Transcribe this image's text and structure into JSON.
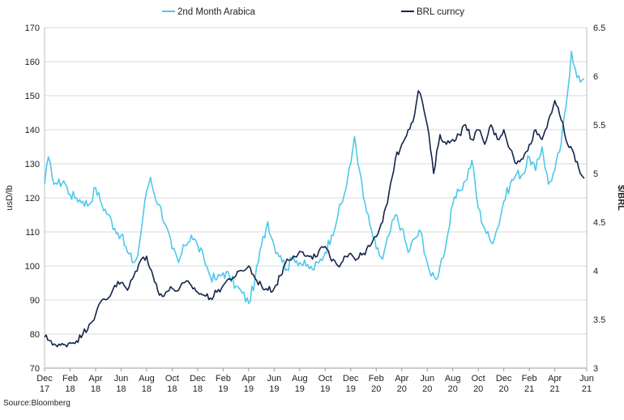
{
  "chart_data": {
    "type": "line",
    "title": "",
    "source": "Source:Bloomberg",
    "xlabel": "",
    "ylabel_left": "usD/lb",
    "ylabel_right": "$/BRL",
    "ylim_left": [
      70,
      170
    ],
    "ylim_right": [
      3.0,
      6.5
    ],
    "yticks_left": [
      "70",
      "80",
      "90",
      "100",
      "110",
      "120",
      "130",
      "140",
      "150",
      "160",
      "170"
    ],
    "yticks_right": [
      "3",
      "3.5",
      "4",
      "4.5",
      "5",
      "5.5",
      "6",
      "6.5"
    ],
    "x_ticks": [
      {
        "month": "Dec",
        "year": "17"
      },
      {
        "month": "Feb",
        "year": "18"
      },
      {
        "month": "Apr",
        "year": "18"
      },
      {
        "month": "Jun",
        "year": "18"
      },
      {
        "month": "Aug",
        "year": "18"
      },
      {
        "month": "Oct",
        "year": "18"
      },
      {
        "month": "Dec",
        "year": "18"
      },
      {
        "month": "Feb",
        "year": "19"
      },
      {
        "month": "Apr",
        "year": "19"
      },
      {
        "month": "Jun",
        "year": "19"
      },
      {
        "month": "Aug",
        "year": "19"
      },
      {
        "month": "Oct",
        "year": "19"
      },
      {
        "month": "Dec",
        "year": "19"
      },
      {
        "month": "Feb",
        "year": "20"
      },
      {
        "month": "Apr",
        "year": "20"
      },
      {
        "month": "Jun",
        "year": "20"
      },
      {
        "month": "Aug",
        "year": "20"
      },
      {
        "month": "Oct",
        "year": "20"
      },
      {
        "month": "Dec",
        "year": "20"
      },
      {
        "month": "Feb",
        "year": "21"
      },
      {
        "month": "Apr",
        "year": "21"
      },
      {
        "month": "Jun",
        "year": "21"
      }
    ],
    "x_range_months": [
      0,
      42.5
    ],
    "legend_position": "top-center",
    "series": [
      {
        "name": "2nd Month Arabica",
        "axis": "left",
        "color": "#4FC8EA",
        "points": [
          [
            0,
            124
          ],
          [
            0.3,
            132
          ],
          [
            0.6,
            126
          ],
          [
            1,
            124
          ],
          [
            1.5,
            125
          ],
          [
            2,
            121
          ],
          [
            2.5,
            120
          ],
          [
            3,
            119
          ],
          [
            3.5,
            118
          ],
          [
            4,
            123
          ],
          [
            4.5,
            118
          ],
          [
            5,
            115
          ],
          [
            5.5,
            111
          ],
          [
            6,
            109
          ],
          [
            6.5,
            104
          ],
          [
            7,
            101
          ],
          [
            7.3,
            103
          ],
          [
            7.7,
            114
          ],
          [
            8,
            122
          ],
          [
            8.3,
            126
          ],
          [
            8.6,
            121
          ],
          [
            9,
            118
          ],
          [
            9.5,
            112
          ],
          [
            10,
            105
          ],
          [
            10.5,
            101
          ],
          [
            11,
            106
          ],
          [
            11.5,
            109
          ],
          [
            12,
            106
          ],
          [
            12.5,
            102
          ],
          [
            13,
            97
          ],
          [
            13.5,
            96
          ],
          [
            14,
            98
          ],
          [
            14.5,
            97
          ],
          [
            15,
            94
          ],
          [
            15.5,
            92
          ],
          [
            16,
            89
          ],
          [
            16.5,
            96
          ],
          [
            17,
            106
          ],
          [
            17.5,
            113
          ],
          [
            18,
            106
          ],
          [
            18.5,
            103
          ],
          [
            19,
            99
          ],
          [
            19.5,
            103
          ],
          [
            20,
            101
          ],
          [
            20.5,
            100
          ],
          [
            21,
            99
          ],
          [
            21.5,
            101
          ],
          [
            22,
            104
          ],
          [
            22.5,
            109
          ],
          [
            23,
            115
          ],
          [
            23.5,
            121
          ],
          [
            24,
            130
          ],
          [
            24.3,
            138
          ],
          [
            24.7,
            128
          ],
          [
            25,
            120
          ],
          [
            25.5,
            112
          ],
          [
            26,
            105
          ],
          [
            26.5,
            102
          ],
          [
            27,
            109
          ],
          [
            27.5,
            115
          ],
          [
            28,
            111
          ],
          [
            28.5,
            104
          ],
          [
            29,
            108
          ],
          [
            29.5,
            110
          ],
          [
            30,
            101
          ],
          [
            30.3,
            97
          ],
          [
            30.7,
            96
          ],
          [
            31,
            100
          ],
          [
            31.5,
            107
          ],
          [
            32,
            118
          ],
          [
            32.5,
            122
          ],
          [
            33,
            125
          ],
          [
            33.5,
            131
          ],
          [
            34,
            117
          ],
          [
            34.5,
            111
          ],
          [
            35,
            107
          ],
          [
            35.5,
            111
          ],
          [
            36,
            119
          ],
          [
            36.5,
            124
          ],
          [
            37,
            127
          ],
          [
            37.5,
            127
          ],
          [
            38,
            132
          ],
          [
            38.5,
            128
          ],
          [
            39,
            135
          ],
          [
            39.5,
            124
          ],
          [
            40,
            128
          ],
          [
            40.5,
            136
          ],
          [
            41,
            151
          ],
          [
            41.3,
            163
          ],
          [
            41.6,
            158
          ],
          [
            42,
            154
          ],
          [
            42.3,
            155
          ]
        ]
      },
      {
        "name": "BRL curncy",
        "axis": "right",
        "color": "#14244A",
        "points": [
          [
            0,
            3.32
          ],
          [
            0.5,
            3.28
          ],
          [
            1,
            3.22
          ],
          [
            1.5,
            3.24
          ],
          [
            2,
            3.26
          ],
          [
            2.5,
            3.28
          ],
          [
            3,
            3.35
          ],
          [
            3.5,
            3.45
          ],
          [
            4,
            3.55
          ],
          [
            4.5,
            3.7
          ],
          [
            5,
            3.72
          ],
          [
            5.5,
            3.85
          ],
          [
            6,
            3.88
          ],
          [
            6.5,
            3.8
          ],
          [
            7,
            3.95
          ],
          [
            7.5,
            4.1
          ],
          [
            8,
            4.15
          ],
          [
            8.5,
            3.95
          ],
          [
            9,
            3.75
          ],
          [
            9.5,
            3.78
          ],
          [
            10,
            3.82
          ],
          [
            10.5,
            3.8
          ],
          [
            11,
            3.88
          ],
          [
            11.5,
            3.85
          ],
          [
            12,
            3.78
          ],
          [
            12.5,
            3.75
          ],
          [
            13,
            3.72
          ],
          [
            13.5,
            3.78
          ],
          [
            14,
            3.85
          ],
          [
            14.5,
            3.92
          ],
          [
            15,
            3.95
          ],
          [
            15.5,
            4.0
          ],
          [
            16,
            4.05
          ],
          [
            16.5,
            3.92
          ],
          [
            17,
            3.85
          ],
          [
            17.5,
            3.8
          ],
          [
            18,
            3.82
          ],
          [
            18.5,
            3.95
          ],
          [
            19,
            4.12
          ],
          [
            19.5,
            4.15
          ],
          [
            20,
            4.2
          ],
          [
            20.5,
            4.15
          ],
          [
            21,
            4.12
          ],
          [
            21.5,
            4.2
          ],
          [
            22,
            4.25
          ],
          [
            22.5,
            4.1
          ],
          [
            23,
            4.05
          ],
          [
            23.5,
            4.15
          ],
          [
            24,
            4.18
          ],
          [
            24.5,
            4.12
          ],
          [
            25,
            4.18
          ],
          [
            25.5,
            4.25
          ],
          [
            26,
            4.35
          ],
          [
            26.5,
            4.5
          ],
          [
            27,
            4.8
          ],
          [
            27.5,
            5.15
          ],
          [
            28,
            5.3
          ],
          [
            28.5,
            5.45
          ],
          [
            29,
            5.6
          ],
          [
            29.3,
            5.85
          ],
          [
            29.6,
            5.75
          ],
          [
            30,
            5.5
          ],
          [
            30.5,
            5.0
          ],
          [
            31,
            5.4
          ],
          [
            31.5,
            5.3
          ],
          [
            32,
            5.35
          ],
          [
            32.5,
            5.4
          ],
          [
            33,
            5.5
          ],
          [
            33.5,
            5.35
          ],
          [
            34,
            5.45
          ],
          [
            34.5,
            5.3
          ],
          [
            35,
            5.5
          ],
          [
            35.5,
            5.35
          ],
          [
            36,
            5.45
          ],
          [
            36.5,
            5.25
          ],
          [
            37,
            5.1
          ],
          [
            37.5,
            5.15
          ],
          [
            38,
            5.3
          ],
          [
            38.5,
            5.45
          ],
          [
            39,
            5.35
          ],
          [
            39.5,
            5.55
          ],
          [
            40,
            5.75
          ],
          [
            40.5,
            5.55
          ],
          [
            41,
            5.3
          ],
          [
            41.5,
            5.2
          ],
          [
            42,
            5.0
          ],
          [
            42.3,
            4.95
          ]
        ]
      }
    ]
  }
}
